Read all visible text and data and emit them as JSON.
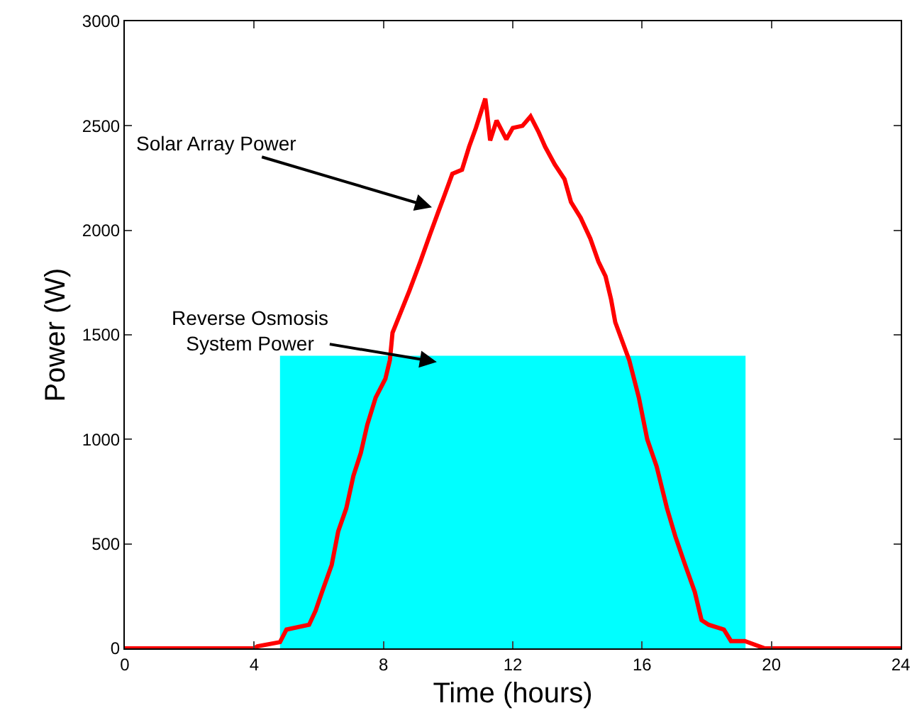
{
  "chart_data": {
    "type": "line",
    "xlabel": "Time (hours)",
    "ylabel": "Power (W)",
    "xlim": [
      0,
      24
    ],
    "xticks": [
      0,
      4,
      8,
      12,
      16,
      20,
      24
    ],
    "ylim": [
      0,
      3000
    ],
    "yticks": [
      0,
      500,
      1000,
      1500,
      2000,
      2500,
      3000
    ],
    "marker": "none",
    "line_style": "solid",
    "series": [
      {
        "type": "area",
        "color": "#00ffff",
        "x": [
          4.8,
          19.2
        ],
        "values": [
          1400,
          1400
        ]
      },
      {
        "color": "#ff0000",
        "x": [
          0,
          4.0,
          4.1,
          4.8,
          5.0,
          5.7,
          5.9,
          6.1,
          6.4,
          6.6,
          6.85,
          7.07,
          7.3,
          7.5,
          7.76,
          8.06,
          8.2,
          8.28,
          8.58,
          8.8,
          9.14,
          9.44,
          9.7,
          9.87,
          10.13,
          10.43,
          10.65,
          10.86,
          11.15,
          11.2,
          11.3,
          11.5,
          11.8,
          12.0,
          12.3,
          12.55,
          12.8,
          13.0,
          13.3,
          13.6,
          13.8,
          14.1,
          14.4,
          14.65,
          14.87,
          15.04,
          15.17,
          15.6,
          15.9,
          16.16,
          16.45,
          16.77,
          17.03,
          17.33,
          17.63,
          17.84,
          18.06,
          18.53,
          18.75,
          19.18,
          19.8,
          24
        ],
        "values": [
          0,
          0,
          10,
          30,
          90,
          113,
          180,
          270,
          400,
          560,
          670,
          825,
          935,
          1070,
          1200,
          1290,
          1380,
          1510,
          1625,
          1710,
          1850,
          1980,
          2090,
          2160,
          2270,
          2290,
          2400,
          2490,
          2630,
          2570,
          2430,
          2525,
          2435,
          2490,
          2500,
          2545,
          2470,
          2400,
          2315,
          2245,
          2135,
          2060,
          1960,
          1850,
          1780,
          1670,
          1560,
          1380,
          1200,
          1000,
          870,
          670,
          535,
          400,
          270,
          135,
          113,
          90,
          35,
          35,
          0,
          0
        ]
      }
    ],
    "annotations": [
      {
        "text": "Solar Array Power",
        "x": 9.5,
        "y": 2110
      },
      {
        "text": "Reverse Osmosis\nSystem Power",
        "x": 9.65,
        "y": 1370
      }
    ]
  }
}
